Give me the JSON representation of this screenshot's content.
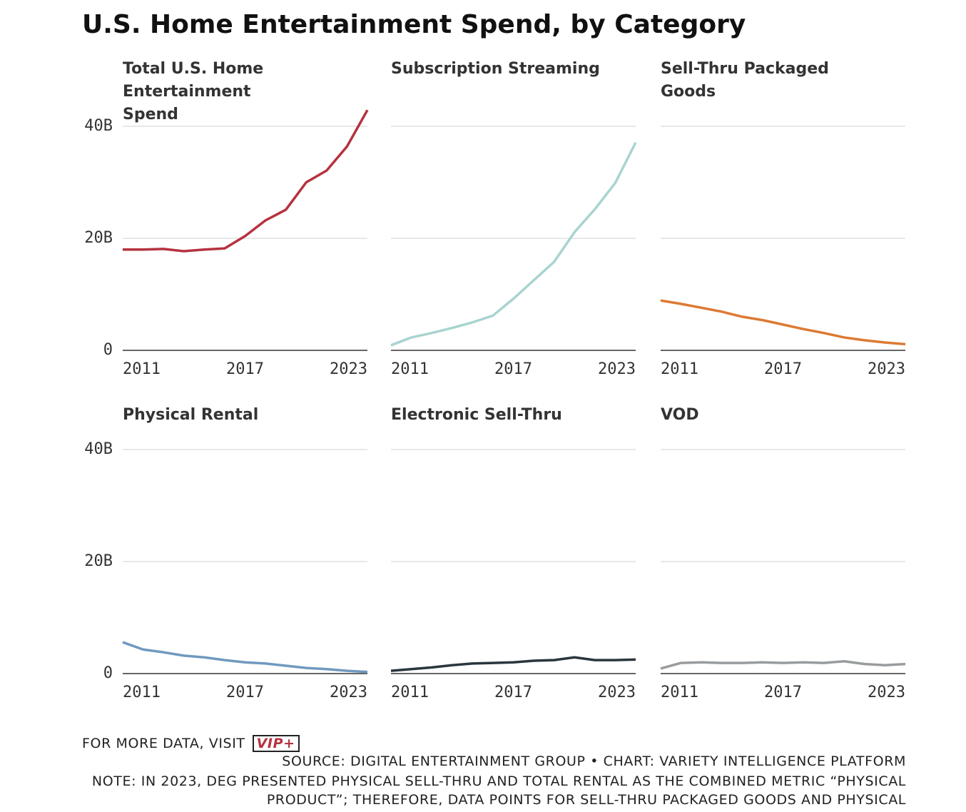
{
  "title": "U.S. Home Entertainment Spend, by Category",
  "x": [
    2011,
    2012,
    2013,
    2014,
    2015,
    2016,
    2017,
    2018,
    2019,
    2020,
    2021,
    2022,
    2023
  ],
  "xlim": [
    2011,
    2023
  ],
  "xticks": [
    2011,
    2017,
    2023
  ],
  "ylim": [
    0,
    40
  ],
  "yticks": [
    0,
    {
      "value": 20,
      "label": "20B"
    },
    {
      "value": 40,
      "label": "40B"
    }
  ],
  "grid": true,
  "chart_data": [
    {
      "type": "line",
      "title": "Total U.S. Home Entertainment Spend",
      "color": "#b5323f",
      "values": [
        18.0,
        18.0,
        18.1,
        17.7,
        18.0,
        18.2,
        20.4,
        23.2,
        25.1,
        30.0,
        32.1,
        36.4,
        42.9
      ]
    },
    {
      "type": "line",
      "title": "Subscription Streaming",
      "color": "#a9d4d0",
      "values": [
        0.9,
        2.3,
        3.1,
        4.0,
        5.0,
        6.2,
        9.2,
        12.5,
        15.8,
        21.1,
        25.2,
        29.9,
        37.1
      ]
    },
    {
      "type": "line",
      "title": "Sell-Thru Packaged Goods",
      "color": "#dc7a34",
      "values": [
        8.9,
        8.3,
        7.6,
        6.9,
        6.0,
        5.4,
        4.6,
        3.8,
        3.1,
        2.3,
        1.8,
        1.4,
        1.1
      ]
    },
    {
      "type": "line",
      "title": "Physical Rental",
      "color": "#7199bf",
      "values": [
        5.6,
        4.3,
        3.8,
        3.2,
        2.9,
        2.4,
        2.0,
        1.8,
        1.4,
        1.0,
        0.8,
        0.5,
        0.3
      ]
    },
    {
      "type": "line",
      "title": "Electronic Sell-Thru",
      "color": "#2a363d",
      "values": [
        0.5,
        0.8,
        1.1,
        1.5,
        1.8,
        1.9,
        2.0,
        2.3,
        2.4,
        2.9,
        2.4,
        2.4,
        2.5
      ]
    },
    {
      "type": "line",
      "title": "VOD",
      "color": "#999c9e",
      "values": [
        0.9,
        1.9,
        2.0,
        1.9,
        1.9,
        2.0,
        1.9,
        2.0,
        1.9,
        2.2,
        1.7,
        1.5,
        1.7
      ]
    }
  ],
  "footer": {
    "more": "FOR MORE DATA, VISIT",
    "logo": "VIP+",
    "source": "SOURCE: DIGITAL ENTERTAINMENT GROUP • CHART: VARIETY INTELLIGENCE PLATFORM",
    "note": "NOTE: IN 2023, DEG PRESENTED PHYSICAL SELL-THRU AND TOTAL RENTAL AS THE COMBINED METRIC “PHYSICAL PRODUCT”; THEREFORE, DATA POINTS FOR SELL-THRU PACKAGED GOODS AND PHYSICAL"
  }
}
